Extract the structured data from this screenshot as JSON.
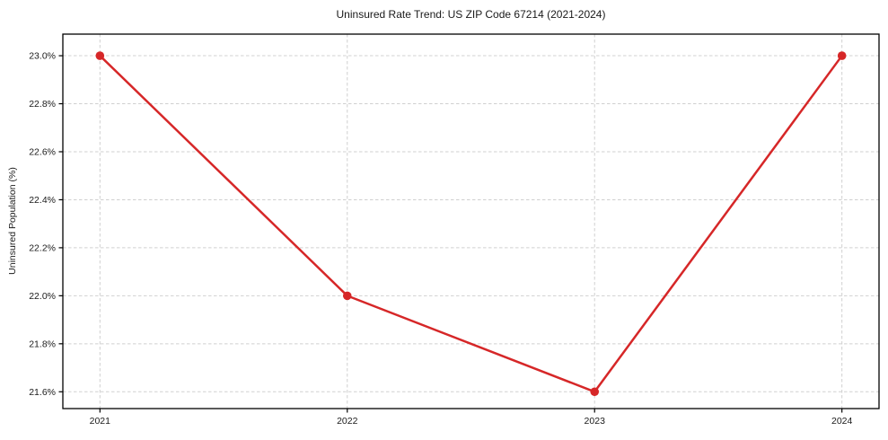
{
  "page": {
    "background": "#ffffff"
  },
  "chart_data": {
    "type": "line",
    "title": "Uninsured Rate Trend: US ZIP Code 67214 (2021-2024)",
    "xlabel": "",
    "ylabel": "Uninsured Population (%)",
    "x": [
      2021,
      2022,
      2023,
      2024
    ],
    "xtick_labels": [
      "2021",
      "2022",
      "2023",
      "2024"
    ],
    "values": [
      23.0,
      22.0,
      21.6,
      23.0
    ],
    "yticks": [
      21.6,
      21.8,
      22.0,
      22.2,
      22.4,
      22.6,
      22.8,
      23.0
    ],
    "ytick_labels": [
      "21.6%",
      "21.8%",
      "22.0%",
      "22.2%",
      "22.4%",
      "22.6%",
      "22.8%",
      "23.0%"
    ],
    "xlim": [
      2020.85,
      2024.15
    ],
    "ylim": [
      21.53,
      23.09
    ],
    "grid": true,
    "legend_position": "none",
    "line_color": "#d62728",
    "marker": "circle",
    "grid_color": "#d0d0d0",
    "axis_color": "#000000",
    "text_color": "#1a1a1a"
  }
}
